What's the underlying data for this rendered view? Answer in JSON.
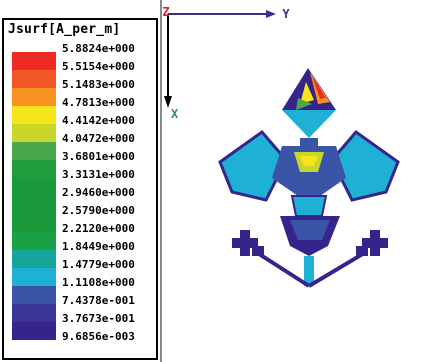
{
  "legend": {
    "title": "Jsurf[A_per_m]",
    "ticks": [
      "5.8824e+000",
      "5.5154e+000",
      "5.1483e+000",
      "4.7813e+000",
      "4.4142e+000",
      "4.0472e+000",
      "3.6801e+000",
      "3.3131e+000",
      "2.9460e+000",
      "2.5790e+000",
      "2.2120e+000",
      "1.8449e+000",
      "1.4779e+000",
      "1.1108e+000",
      "7.4378e-001",
      "3.7673e-001",
      "9.6856e-003"
    ],
    "colors": [
      "#ee2a24",
      "#f25527",
      "#f7931e",
      "#f5e51a",
      "#c7d629",
      "#4aa84a",
      "#219c3c",
      "#1a9a3a",
      "#1a9a3a",
      "#1a9a3a",
      "#1aa147",
      "#16a39a",
      "#1fb0d6",
      "#3a55a8",
      "#3a3596",
      "#35258a"
    ]
  },
  "axes": {
    "z_label": "Z",
    "y_label": "Y",
    "x_label": "X"
  }
}
